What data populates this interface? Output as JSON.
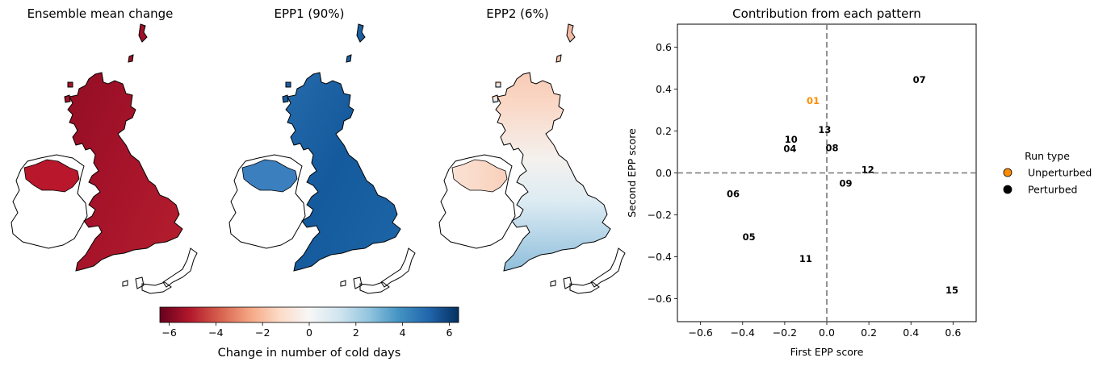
{
  "maps": [
    {
      "title": "Ensemble mean change",
      "colormap": "dark-red"
    },
    {
      "title": "EPP1 (90%)",
      "colormap": "blue"
    },
    {
      "title": "EPP2 (6%)",
      "colormap": "diverging-north-red-south-blue"
    }
  ],
  "colorbar": {
    "label": "Change in number of cold days",
    "range": [
      -6.4,
      6.4
    ],
    "ticks": [
      "−6",
      "−4",
      "−2",
      "0",
      "2",
      "4",
      "6"
    ],
    "tick_values": [
      -6,
      -4,
      -2,
      0,
      2,
      4,
      6
    ],
    "colors": [
      "#67001f",
      "#b2182b",
      "#d6604d",
      "#f4a582",
      "#fddbc7",
      "#f7f7f7",
      "#d1e5f0",
      "#92c5de",
      "#4393c3",
      "#2166ac",
      "#053061"
    ]
  },
  "chart_data": {
    "type": "scatter",
    "title": "Contribution from each pattern",
    "xlabel": "First EPP score",
    "ylabel": "Second EPP score",
    "xlim": [
      -0.71,
      0.71
    ],
    "ylim": [
      -0.71,
      0.71
    ],
    "xticks": [
      -0.6,
      -0.4,
      -0.2,
      0.0,
      0.2,
      0.4,
      0.6
    ],
    "yticks": [
      -0.6,
      -0.4,
      -0.2,
      0.0,
      0.2,
      0.4,
      0.6
    ],
    "xtick_labels": [
      "−0.6",
      "−0.4",
      "−0.2",
      "0.0",
      "0.2",
      "0.4",
      "0.6"
    ],
    "ytick_labels": [
      "−0.6",
      "−0.4",
      "−0.2",
      "0.0",
      "0.2",
      "0.4",
      "0.6"
    ],
    "zero_lines": true,
    "points": [
      {
        "label": "01",
        "x": -0.065,
        "y": 0.345,
        "type": "unperturbed"
      },
      {
        "label": "04",
        "x": -0.175,
        "y": 0.115,
        "type": "perturbed"
      },
      {
        "label": "05",
        "x": -0.37,
        "y": -0.305,
        "type": "perturbed"
      },
      {
        "label": "06",
        "x": -0.445,
        "y": -0.1,
        "type": "perturbed"
      },
      {
        "label": "07",
        "x": 0.44,
        "y": 0.445,
        "type": "perturbed"
      },
      {
        "label": "08",
        "x": 0.025,
        "y": 0.12,
        "type": "perturbed"
      },
      {
        "label": "09",
        "x": 0.09,
        "y": -0.05,
        "type": "perturbed"
      },
      {
        "label": "10",
        "x": -0.17,
        "y": 0.16,
        "type": "perturbed"
      },
      {
        "label": "11",
        "x": -0.1,
        "y": -0.41,
        "type": "perturbed"
      },
      {
        "label": "12",
        "x": 0.195,
        "y": 0.015,
        "type": "perturbed"
      },
      {
        "label": "13",
        "x": -0.01,
        "y": 0.205,
        "type": "perturbed"
      },
      {
        "label": "15",
        "x": 0.595,
        "y": -0.56,
        "type": "perturbed"
      }
    ],
    "legend": {
      "title": "Run type",
      "placement": "right-outside",
      "entries": [
        {
          "name": "Unperturbed",
          "color": "#ff8c00"
        },
        {
          "name": "Perturbed",
          "color": "#000000"
        }
      ]
    }
  }
}
